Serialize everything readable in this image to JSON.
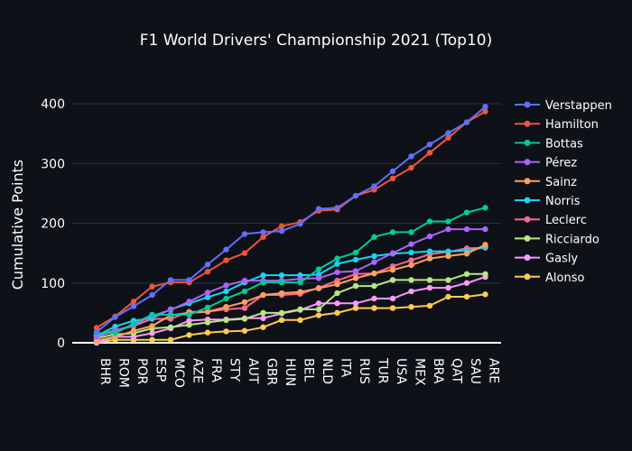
{
  "chart_data": {
    "type": "line",
    "title": "F1 World Drivers' Championship 2021 (Top10)",
    "xlabel": "",
    "ylabel": "Cumulative Points",
    "ylim": [
      0,
      420
    ],
    "yticks": [
      0,
      100,
      200,
      300,
      400
    ],
    "grid": true,
    "legend_position": "right",
    "categories": [
      "BHR",
      "ROM",
      "POR",
      "ESP",
      "MCO",
      "AZE",
      "FRA",
      "STY",
      "AUT",
      "GBR",
      "HUN",
      "BEL",
      "NLD",
      "ITA",
      "RUS",
      "TUR",
      "USA",
      "MEX",
      "BRA",
      "QAT",
      "SAU",
      "ARE"
    ],
    "series": [
      {
        "name": "Verstappen",
        "color": "#636efa",
        "values": [
          18,
          43,
          61,
          80,
          105,
          105,
          131,
          156,
          182,
          185,
          187,
          199,
          224,
          226,
          246,
          262,
          287,
          312,
          332,
          351,
          369,
          395
        ]
      },
      {
        "name": "Hamilton",
        "color": "#ef553b",
        "values": [
          25,
          44,
          69,
          94,
          101,
          101,
          119,
          138,
          150,
          177,
          195,
          202,
          221,
          223,
          246,
          256,
          275,
          293,
          318,
          343,
          369,
          387
        ]
      },
      {
        "name": "Bottas",
        "color": "#00cc96",
        "values": [
          16,
          16,
          32,
          47,
          47,
          47,
          59,
          74,
          86,
          101,
          101,
          101,
          123,
          141,
          151,
          177,
          185,
          185,
          203,
          203,
          218,
          226
        ]
      },
      {
        "name": "Pérez",
        "color": "#ab63fa",
        "values": [
          10,
          20,
          30,
          45,
          55,
          69,
          84,
          96,
          104,
          104,
          104,
          107,
          108,
          118,
          120,
          135,
          150,
          165,
          178,
          190,
          190,
          190
        ]
      },
      {
        "name": "Sainz",
        "color": "#ffa15a",
        "values": [
          4,
          10,
          20,
          28,
          46,
          50,
          52,
          60,
          68,
          80,
          83,
          85,
          91,
          98,
          108,
          116,
          122,
          130,
          141,
          145,
          149,
          164
        ]
      },
      {
        "name": "Norris",
        "color": "#19d3f3",
        "values": [
          12,
          27,
          37,
          41,
          56,
          66,
          76,
          86,
          101,
          113,
          113,
          113,
          114,
          132,
          139,
          145,
          149,
          151,
          153,
          153,
          154,
          160
        ]
      },
      {
        "name": "Leclerc",
        "color": "#ff6692",
        "values": [
          12,
          21,
          28,
          40,
          40,
          52,
          52,
          56,
          58,
          80,
          80,
          82,
          92,
          104,
          115,
          116,
          128,
          138,
          148,
          152,
          158,
          159
        ]
      },
      {
        "name": "Ricciardo",
        "color": "#b6e880",
        "values": [
          8,
          14,
          16,
          24,
          26,
          30,
          34,
          38,
          40,
          50,
          50,
          56,
          56,
          83,
          95,
          95,
          105,
          105,
          105,
          105,
          115,
          115
        ]
      },
      {
        "name": "Gasly",
        "color": "#ff97ff",
        "values": [
          0,
          10,
          10,
          16,
          24,
          37,
          39,
          39,
          41,
          41,
          49,
          55,
          66,
          66,
          66,
          74,
          74,
          86,
          92,
          92,
          100,
          110
        ]
      },
      {
        "name": "Alonso",
        "color": "#fecb52",
        "values": [
          0,
          5,
          5,
          5,
          5,
          13,
          17,
          19,
          20,
          26,
          38,
          38,
          46,
          50,
          58,
          58,
          58,
          60,
          62,
          77,
          77,
          81
        ]
      }
    ]
  }
}
